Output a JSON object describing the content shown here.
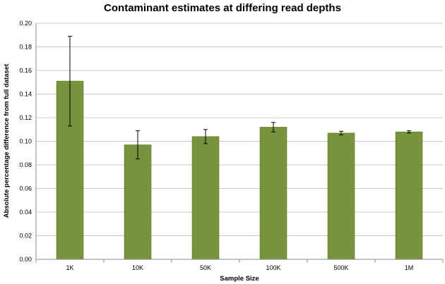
{
  "chart_data": {
    "type": "bar",
    "title": "Contaminant estimates at differing read depths",
    "xlabel": "Sample Size",
    "ylabel": "Absolute percentage difference  from full dataset",
    "categories": [
      "1K",
      "10K",
      "50K",
      "100K",
      "500K",
      "1M"
    ],
    "values": [
      0.151,
      0.097,
      0.104,
      0.112,
      0.107,
      0.108
    ],
    "error": [
      0.038,
      0.012,
      0.006,
      0.004,
      0.0015,
      0.001
    ],
    "ylim": [
      0,
      0.2
    ],
    "yticks": [
      "0.00",
      "0.02",
      "0.04",
      "0.06",
      "0.08",
      "0.10",
      "0.12",
      "0.14",
      "0.16",
      "0.18",
      "0.20"
    ],
    "grid": true,
    "legend": "none",
    "colors": {
      "bar": "#77933c",
      "bar_edge": "#5f7a2a",
      "grid": "#c8c8c8",
      "axis": "#8c8c8c"
    }
  }
}
